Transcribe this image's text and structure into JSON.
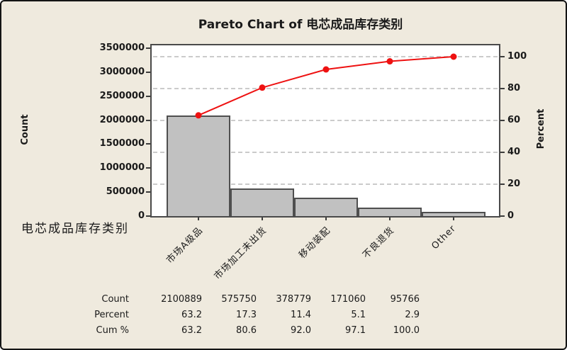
{
  "title": "Pareto Chart of 电芯成品库存类别",
  "left_axis_title": "Count",
  "right_axis_title": "Percent",
  "x_axis_variable": "电芯成品库存类别",
  "colors": {
    "background": "#efeade",
    "plot_background": "#ffffff",
    "bar_fill": "#c1c1c1",
    "bar_border": "#4f4f4f",
    "line": "#ee1111",
    "marker": "#ee1111",
    "gridline": "#cbcbcb",
    "frame": "#4a4a4a",
    "text": "#1a1a1a"
  },
  "chart_data": {
    "type": "bar",
    "subtype": "pareto-with-cumulative-line",
    "title": "Pareto Chart of 电芯成品库存类别",
    "categories": [
      "市场A级品",
      "市场加工未出货",
      "移动装配",
      "不良退货",
      "Other"
    ],
    "series": [
      {
        "name": "Count",
        "values": [
          2100889,
          575750,
          378779,
          171060,
          95766
        ]
      },
      {
        "name": "Percent",
        "values": [
          63.2,
          17.3,
          11.4,
          5.1,
          2.9
        ]
      },
      {
        "name": "Cum %",
        "values": [
          63.2,
          80.6,
          92.0,
          97.1,
          100.0
        ]
      }
    ],
    "left_axis": {
      "label": "Count",
      "min": 0,
      "max": 3500000,
      "tick_step": 500000
    },
    "right_axis": {
      "label": "Percent",
      "min": 0,
      "max": 100,
      "tick_step": 20
    },
    "grid": "horizontal dashed lines at right-axis ticks",
    "legend": "none"
  },
  "table": {
    "rows": [
      {
        "label": "Count",
        "values": [
          "2100889",
          "575750",
          "378779",
          "171060",
          "95766"
        ]
      },
      {
        "label": "Percent",
        "values": [
          "63.2",
          "17.3",
          "11.4",
          "5.1",
          "2.9"
        ]
      },
      {
        "label": "Cum %",
        "values": [
          "63.2",
          "80.6",
          "92.0",
          "97.1",
          "100.0"
        ]
      }
    ]
  }
}
